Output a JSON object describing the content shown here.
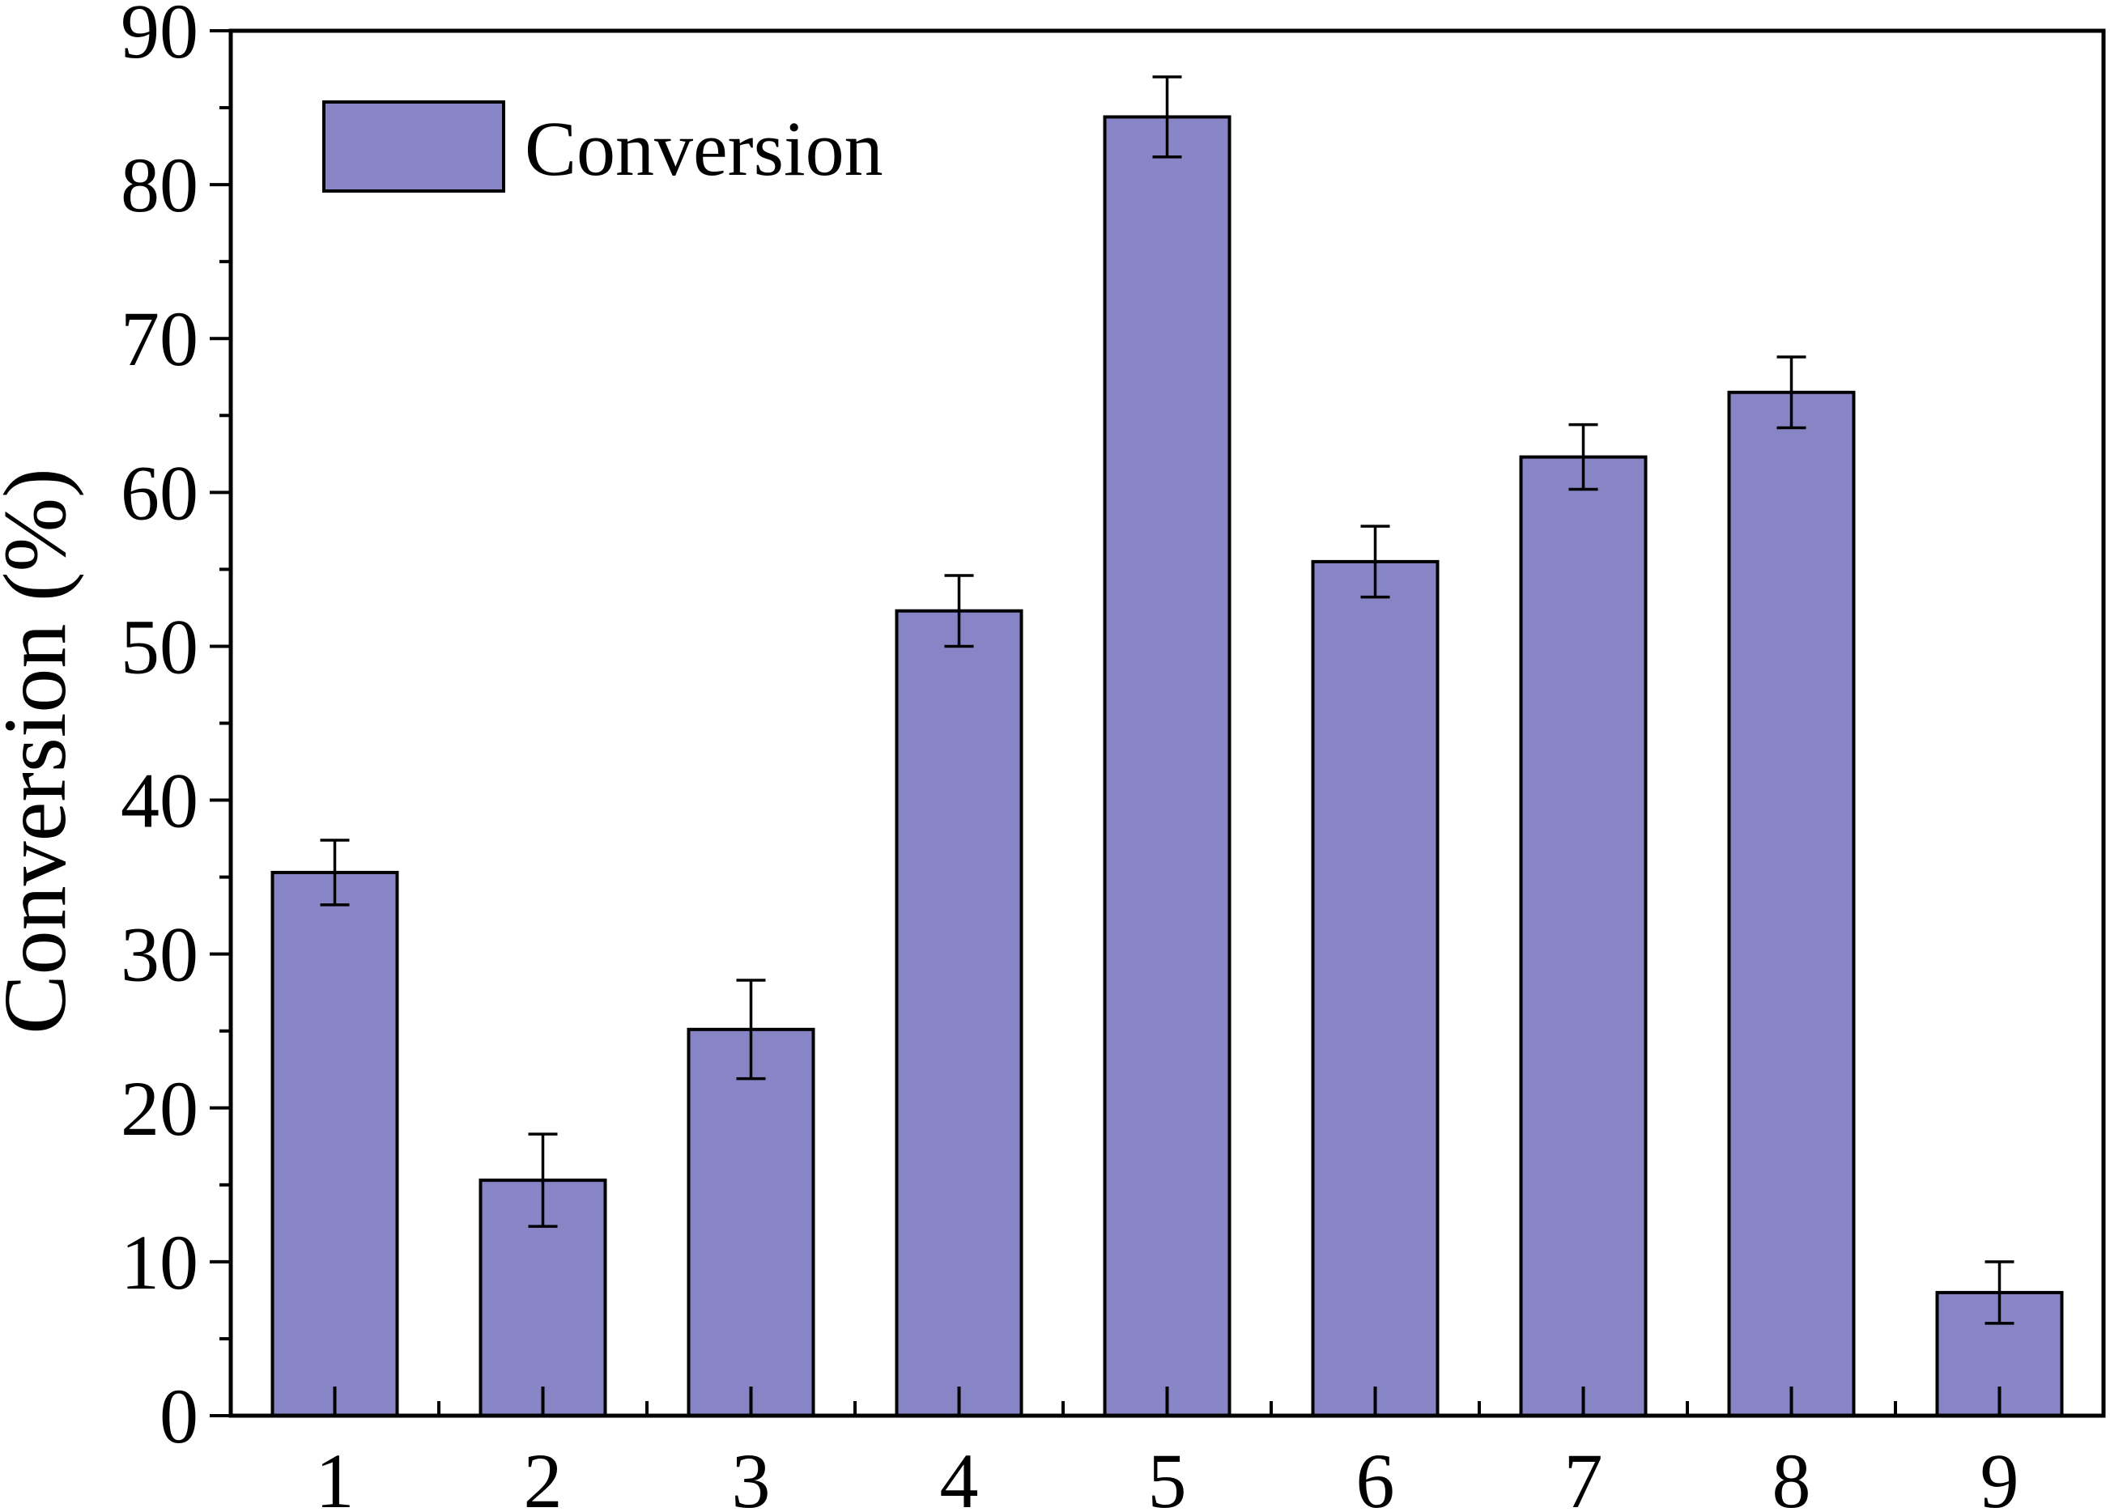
{
  "chart_data": {
    "type": "bar",
    "title": "",
    "xlabel": "",
    "ylabel": "Conversion (%)",
    "ylim": [
      0,
      90
    ],
    "yticks": [
      0,
      10,
      20,
      30,
      40,
      50,
      60,
      70,
      80,
      90
    ],
    "categories": [
      "1",
      "2",
      "3",
      "4",
      "5",
      "6",
      "7",
      "8",
      "9"
    ],
    "series": [
      {
        "name": "Conversion",
        "values": [
          35.3,
          15.3,
          25.1,
          52.3,
          84.4,
          55.5,
          62.3,
          66.5,
          8.0
        ],
        "errors": [
          2.1,
          3.0,
          3.2,
          2.3,
          2.6,
          2.3,
          2.1,
          2.3,
          2.0
        ],
        "color": "#8785c6"
      }
    ],
    "legend": "top-left",
    "grid": false
  }
}
